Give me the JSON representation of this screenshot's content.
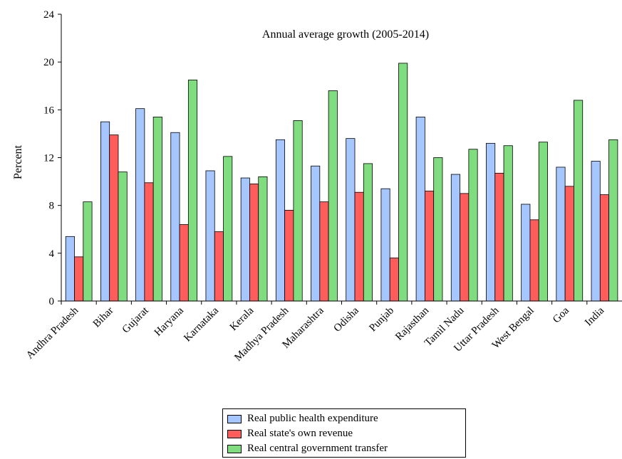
{
  "chart_data": {
    "type": "bar",
    "title": "Annual average growth (2005-2014)",
    "ylabel": "Percent",
    "xlabel": "",
    "ylim": [
      0,
      24
    ],
    "yticks": [
      0,
      4,
      8,
      12,
      16,
      20,
      24
    ],
    "categories": [
      "Andhra Pradesh",
      "Bihar",
      "Gujarat",
      "Haryana",
      "Karnataka",
      "Kerala",
      "Madhya Pradesh",
      "Maharashtra",
      "Odisha",
      "Punjab",
      "Rajasthan",
      "Tamil Nadu",
      "Uttar Pradesh",
      "West Bengal",
      "Goa",
      "India"
    ],
    "series": [
      {
        "name": "Real public health expenditure",
        "color": "#a6c6ff",
        "values": [
          5.4,
          15.0,
          16.1,
          14.1,
          10.9,
          10.3,
          13.5,
          11.3,
          13.6,
          9.4,
          15.4,
          10.6,
          13.2,
          8.1,
          11.2,
          11.7
        ]
      },
      {
        "name": "Real state's own revenue",
        "color": "#ff5c5c",
        "values": [
          3.7,
          13.9,
          9.9,
          6.4,
          5.8,
          9.8,
          7.6,
          8.3,
          9.1,
          3.6,
          9.2,
          9.0,
          10.7,
          6.8,
          9.6,
          8.9
        ]
      },
      {
        "name": "Real central government transfer",
        "color": "#7fdc7f",
        "values": [
          8.3,
          10.8,
          15.4,
          18.5,
          12.1,
          10.4,
          15.1,
          17.6,
          11.5,
          19.9,
          12.0,
          12.7,
          13.0,
          13.3,
          16.8,
          13.5
        ]
      }
    ],
    "legend_position": "bottom-center",
    "grid": false
  }
}
